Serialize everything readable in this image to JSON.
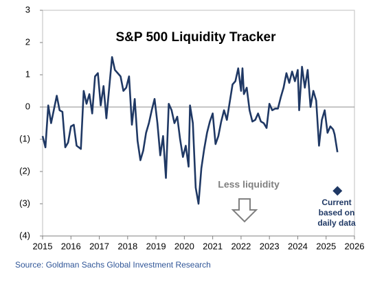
{
  "chart_data": {
    "type": "line",
    "title": "S&P 500 Liquidity  Tracker",
    "x": [
      2015.0,
      2015.1,
      2015.2,
      2015.3,
      2015.5,
      2015.6,
      2015.7,
      2015.8,
      2015.9,
      2016.0,
      2016.1,
      2016.2,
      2016.35,
      2016.45,
      2016.55,
      2016.65,
      2016.75,
      2016.85,
      2016.95,
      2017.05,
      2017.15,
      2017.25,
      2017.45,
      2017.55,
      2017.65,
      2017.75,
      2017.85,
      2017.95,
      2018.05,
      2018.15,
      2018.25,
      2018.35,
      2018.45,
      2018.55,
      2018.65,
      2018.75,
      2018.85,
      2018.95,
      2019.05,
      2019.15,
      2019.25,
      2019.35,
      2019.45,
      2019.55,
      2019.65,
      2019.75,
      2019.85,
      2019.95,
      2020.05,
      2020.15,
      2020.2,
      2020.3,
      2020.4,
      2020.5,
      2020.6,
      2020.7,
      2020.8,
      2020.9,
      2021.0,
      2021.1,
      2021.2,
      2021.3,
      2021.4,
      2021.5,
      2021.6,
      2021.7,
      2021.8,
      2021.9,
      2022.0,
      2022.05,
      2022.1,
      2022.2,
      2022.3,
      2022.4,
      2022.5,
      2022.6,
      2022.7,
      2022.8,
      2022.9,
      2023.0,
      2023.1,
      2023.2,
      2023.3,
      2023.4,
      2023.5,
      2023.6,
      2023.7,
      2023.8,
      2023.9,
      2024.0,
      2024.05,
      2024.15,
      2024.25,
      2024.35,
      2024.45,
      2024.55,
      2024.65,
      2024.75,
      2024.85,
      2024.95,
      2025.05,
      2025.15,
      2025.25,
      2025.3,
      2025.4
    ],
    "series": [
      {
        "color": "#1f3864",
        "values": [
          -0.9,
          -1.25,
          0.05,
          -0.5,
          0.35,
          -0.1,
          -0.15,
          -1.25,
          -1.1,
          -0.6,
          -0.55,
          -1.2,
          -1.3,
          0.5,
          0.1,
          0.4,
          -0.2,
          0.95,
          1.05,
          0.05,
          0.65,
          -0.35,
          1.55,
          1.15,
          1.05,
          0.95,
          0.5,
          0.6,
          0.95,
          -0.55,
          0.25,
          -1.05,
          -1.65,
          -1.35,
          -0.8,
          -0.5,
          -0.1,
          0.25,
          -0.5,
          -1.5,
          -0.9,
          -2.2,
          0.1,
          -0.1,
          -0.5,
          -0.3,
          -1.0,
          -1.55,
          -1.2,
          -1.85,
          0.05,
          -0.5,
          -2.5,
          -3.0,
          -1.9,
          -1.3,
          -0.8,
          -0.45,
          -0.2,
          -1.15,
          -0.9,
          -0.45,
          -0.1,
          -0.4,
          0.15,
          0.7,
          0.8,
          1.2,
          0.5,
          1.2,
          0.4,
          0.6,
          -0.1,
          -0.45,
          -0.4,
          -0.2,
          -0.45,
          -0.5,
          -0.65,
          0.1,
          -0.1,
          -0.05,
          -0.05,
          0.3,
          0.6,
          1.05,
          0.75,
          1.1,
          0.8,
          1.15,
          -0.1,
          1.25,
          0.6,
          1.15,
          0.0,
          0.5,
          0.2,
          -1.2,
          -0.4,
          -0.1,
          -0.8,
          -0.6,
          -0.7,
          -0.85,
          -1.4
        ]
      }
    ],
    "current_point": {
      "x": 2025.4,
      "y": -2.6,
      "color": "#1f3864"
    },
    "current_label": [
      "Current",
      "based on",
      "daily data"
    ],
    "annotation": "Less liquidity",
    "xlim": [
      2015,
      2026
    ],
    "xticks": [
      2015,
      2016,
      2017,
      2018,
      2019,
      2020,
      2021,
      2022,
      2023,
      2024,
      2025,
      2026
    ],
    "ylim": [
      -4,
      3
    ],
    "yticks": [
      3,
      2,
      1,
      0,
      {
        "value": -1,
        "label": "(1)"
      },
      {
        "value": -2,
        "label": "(2)"
      },
      {
        "value": -3,
        "label": "(3)"
      },
      {
        "value": -4,
        "label": "(4)"
      }
    ],
    "source": "Source: Goldman Sachs Global Investment Research"
  }
}
